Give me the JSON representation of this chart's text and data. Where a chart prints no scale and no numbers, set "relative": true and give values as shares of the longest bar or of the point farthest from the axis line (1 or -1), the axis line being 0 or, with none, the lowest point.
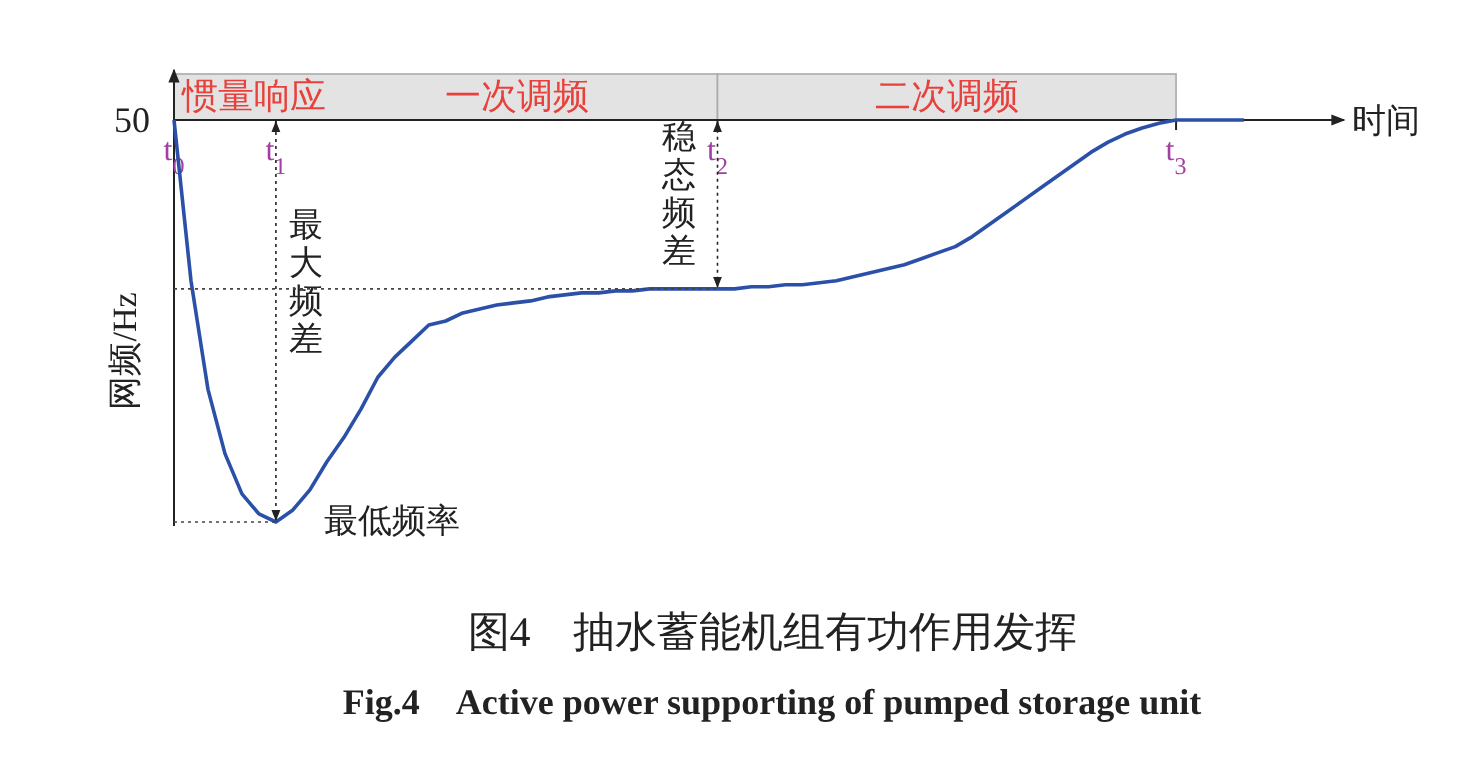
{
  "chart_data": {
    "type": "line",
    "title": "图4　抽水蓄能机组有功作用发挥",
    "subtitle": "Fig.4　Active power supporting of pumped storage unit",
    "xlabel": "时间",
    "ylabel": "网频/Hz",
    "relative": true,
    "categories": [
      "t$_{0}$",
      null,
      null,
      null,
      null,
      null,
      "t$_{1}$",
      null,
      null,
      null,
      null,
      null,
      null,
      null,
      null,
      null,
      null,
      null,
      null,
      null,
      null,
      null,
      null,
      null,
      null,
      null,
      null,
      null,
      null,
      null,
      null,
      null,
      "t$_{2}$",
      null,
      null,
      null,
      null,
      null,
      null,
      null,
      null,
      null,
      null,
      null,
      null,
      null,
      null,
      null,
      null,
      null,
      null,
      null,
      null,
      null,
      null,
      null,
      null,
      null,
      null,
      "t$_{3}$",
      null,
      null,
      null,
      null
    ],
    "series": [
      {
        "color": "#2b50a8",
        "values": [
          0,
          -0.4,
          -0.67,
          -0.83,
          -0.93,
          -0.98,
          -1,
          -0.97,
          -0.92,
          -0.85,
          -0.79,
          -0.72,
          -0.64,
          -0.59,
          -0.55,
          -0.51,
          -0.5,
          -0.48,
          -0.47,
          -0.46,
          -0.455,
          -0.45,
          -0.44,
          -0.435,
          -0.43,
          -0.43,
          -0.425,
          -0.425,
          -0.42,
          -0.42,
          -0.42,
          -0.42,
          -0.42,
          -0.42,
          -0.415,
          -0.415,
          -0.41,
          -0.41,
          -0.405,
          -0.4,
          -0.39,
          -0.38,
          -0.37,
          -0.36,
          -0.345,
          -0.33,
          -0.315,
          -0.29,
          -0.26,
          -0.23,
          -0.2,
          -0.17,
          -0.14,
          -0.11,
          -0.08,
          -0.055,
          -0.035,
          -0.02,
          -0.008,
          0,
          0,
          0,
          0,
          0
        ]
      }
    ],
    "annotations": [
      "50",
      "惯量响应",
      "一次调频",
      "二次调频",
      "最低频率",
      "最大频差",
      "稳态频差"
    ]
  }
}
